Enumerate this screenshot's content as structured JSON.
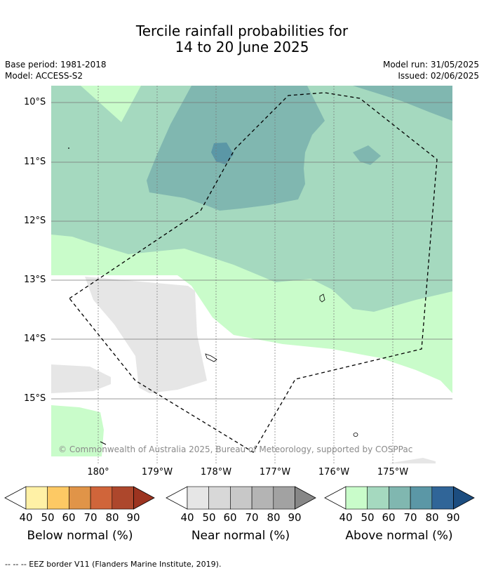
{
  "title_line1": "Tercile rainfall probabilities for",
  "title_line2": "14 to 20 June 2025",
  "base_period": "Base period: 1981-2018",
  "model": "Model: ACCESS-S2",
  "model_run": "Model run: 31/05/2025",
  "issued": "Issued: 02/06/2025",
  "lat_labels": [
    "10°S",
    "11°S",
    "12°S",
    "13°S",
    "14°S",
    "15°S"
  ],
  "lon_labels": [
    "180°",
    "179°W",
    "178°W",
    "177°W",
    "176°W",
    "175°W"
  ],
  "credit": "© Commonwealth of Australia 2025, Bureau of Meteorology, supported by COSPPac",
  "legend": {
    "below": {
      "title": "Below normal (%)",
      "ticks": [
        "40",
        "50",
        "60",
        "70",
        "80",
        "90"
      ],
      "colors": [
        "#fff1a6",
        "#fdc964",
        "#e09448",
        "#d0653a",
        "#ad472c",
        "#9c3420"
      ]
    },
    "near": {
      "title": "Near normal (%)",
      "ticks": [
        "40",
        "50",
        "60",
        "70",
        "80",
        "90"
      ],
      "colors": [
        "#e6e6e6",
        "#d8d8d8",
        "#c8c8c8",
        "#b4b4b4",
        "#a2a2a2",
        "#878787"
      ]
    },
    "above": {
      "title": "Above normal (%)",
      "ticks": [
        "40",
        "50",
        "60",
        "70",
        "80",
        "90"
      ],
      "colors": [
        "#c9fcca",
        "#a5d9bf",
        "#80b7b0",
        "#5b97a6",
        "#306598",
        "#1c4d80"
      ]
    }
  },
  "footnote": "--  --  -- EEZ border V11 (Flanders Marine Institute, 2019)."
}
